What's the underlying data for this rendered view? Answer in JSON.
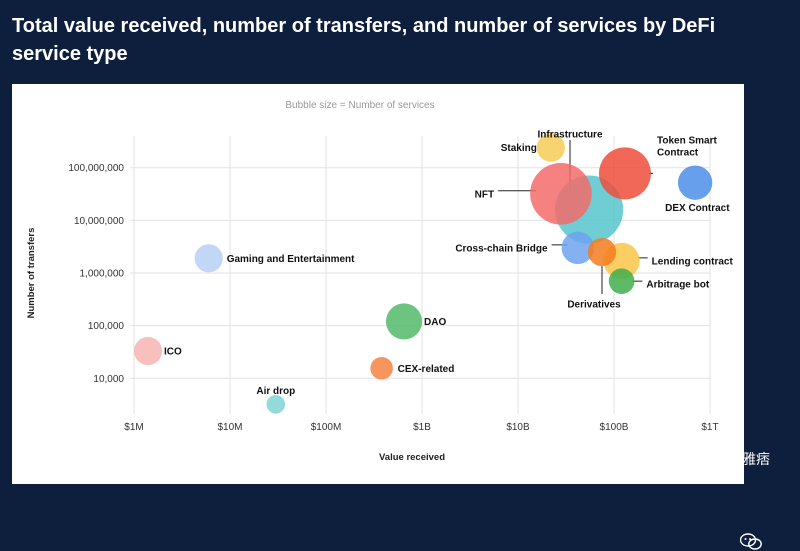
{
  "page": {
    "title": "Total value received, number of transfers, and number of services by DeFi service type",
    "watermark": "老雅痞"
  },
  "chart_data": {
    "type": "scatter",
    "subtitle": "Bubble size = Number of services",
    "xlabel": "Value received",
    "ylabel": "Number of transfers",
    "x_scale": "log",
    "y_scale": "log",
    "xlim": [
      1000000,
      1000000000000
    ],
    "ylim": [
      2500,
      400000000
    ],
    "x_ticks": [
      {
        "value": 1000000,
        "label": "$1M"
      },
      {
        "value": 10000000,
        "label": "$10M"
      },
      {
        "value": 100000000,
        "label": "$100M"
      },
      {
        "value": 1000000000,
        "label": "$1B"
      },
      {
        "value": 10000000000,
        "label": "$10B"
      },
      {
        "value": 100000000000,
        "label": "$100B"
      },
      {
        "value": 1000000000000,
        "label": "$1T"
      }
    ],
    "y_ticks": [
      {
        "value": 10000,
        "label": "10,000"
      },
      {
        "value": 100000,
        "label": "100,000"
      },
      {
        "value": 1000000,
        "label": "1,000,000"
      },
      {
        "value": 10000000,
        "label": "10,000,000"
      },
      {
        "value": 100000000,
        "label": "100,000,000"
      }
    ],
    "points": [
      {
        "name": "NFT",
        "x": 28000000000,
        "y": 32000000,
        "size": 30,
        "color": "#f36b6b"
      },
      {
        "name": "Infrastructure",
        "x": 55000000000,
        "y": 16000000,
        "size": 38,
        "color": "#56c4cc"
      },
      {
        "name": "Token Smart Contract",
        "x": 130000000000,
        "y": 78000000,
        "size": 20,
        "color": "#ef4d3c"
      },
      {
        "name": "Staking",
        "x": 22000000000,
        "y": 240000000,
        "size": 4,
        "color": "#f7cd57"
      },
      {
        "name": "DEX Contract",
        "x": 700000000000,
        "y": 52000000,
        "size": 7,
        "color": "#4d8eea"
      },
      {
        "name": "Cross-chain Bridge",
        "x": 42000000000,
        "y": 3000000,
        "size": 6,
        "color": "#6fa3ee"
      },
      {
        "name": "Derivatives",
        "x": 75000000000,
        "y": 2500000,
        "size": 4,
        "color": "#f47c1e"
      },
      {
        "name": "Lending contract",
        "x": 120000000000,
        "y": 1700000,
        "size": 8,
        "color": "#f9c646"
      },
      {
        "name": "Arbitrage bot",
        "x": 120000000000,
        "y": 700000,
        "size": 3,
        "color": "#3fae4d"
      },
      {
        "name": "Gaming and Entertainment",
        "x": 6000000,
        "y": 1900000,
        "size": 4,
        "color": "#b7d0f7"
      },
      {
        "name": "DAO",
        "x": 650000000,
        "y": 120000,
        "size": 8,
        "color": "#53b86a"
      },
      {
        "name": "ICO",
        "x": 1400000,
        "y": 33000,
        "size": 4,
        "color": "#f7b4b4"
      },
      {
        "name": "CEX-related",
        "x": 380000000,
        "y": 15500,
        "size": 2,
        "color": "#f48442"
      },
      {
        "name": "Air drop",
        "x": 30000000,
        "y": 3200,
        "size": 1,
        "color": "#7fd4d6"
      }
    ]
  }
}
